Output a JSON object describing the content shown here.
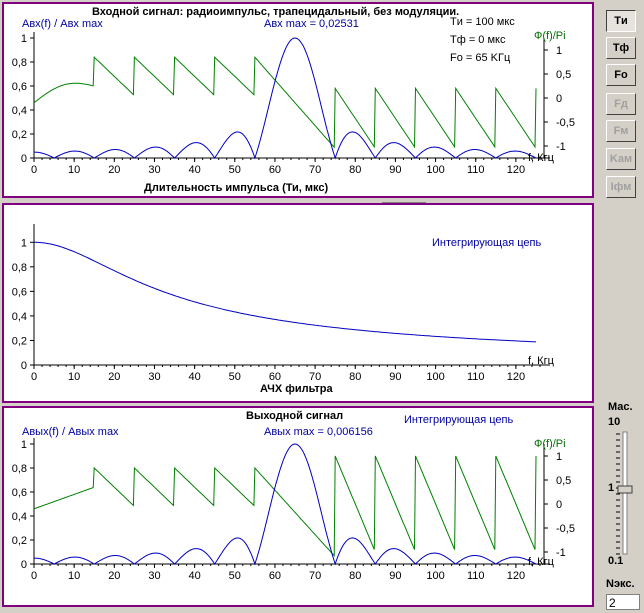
{
  "panels": {
    "input": {
      "title": "Входной сигнал: радиоимпульс, трапецидальный, без модуляции.",
      "left_label": "Aвх(f) / Aвх max",
      "max_label": "Aвх max = 0,02531",
      "right_label": "Ф(f)/Pi",
      "params": [
        "Tи = 100 мкс",
        "Tф = 0 мкс",
        "Fo = 65 KГц"
      ],
      "x_label": "f, Кгц",
      "duration_label": "Длительность импульса (Ти, мкс)",
      "duration_value": "100"
    },
    "filter": {
      "right_caption": "Интегрирующая цепь",
      "bottom_title": "АЧХ фильтра",
      "x_label": "f, Кгц"
    },
    "output": {
      "title": "Выходной сигнал",
      "left_label": "Aвых(f) / Aвых max",
      "max_label": "Aвых max = 0,006156",
      "right_caption": "Интегрирующая цепь",
      "right_label": "Ф(f)/Pi",
      "x_label": "f, Кгц"
    }
  },
  "side_buttons": [
    {
      "label": "Tи",
      "enabled": true,
      "pressed": true
    },
    {
      "label": "Tф",
      "enabled": true,
      "pressed": false
    },
    {
      "label": "Fo",
      "enabled": true,
      "pressed": false
    },
    {
      "label": "Fд",
      "enabled": false,
      "pressed": false
    },
    {
      "label": "Fм",
      "enabled": false,
      "pressed": false
    },
    {
      "label": "Kам",
      "enabled": false,
      "pressed": false
    },
    {
      "label": "Iфм",
      "enabled": false,
      "pressed": false
    }
  ],
  "scale": {
    "title": "Мас.",
    "top": "10",
    "mid": "1",
    "bottom": "0.1",
    "value": 1
  },
  "experiment": {
    "label": "Nэкс.",
    "value": "2"
  },
  "colors": {
    "amplitude": "#0000c0",
    "phase": "#008000",
    "frame": "#800080"
  },
  "chart_data": [
    {
      "type": "line",
      "title": "Входной сигнал: радиоимпульс, трапецидальный, без модуляции.",
      "xlabel": "f, Кгц",
      "ylabel": "Aвх(f) / Aвх max",
      "y2label": "Ф(f)/Pi",
      "xlim": [
        0,
        127
      ],
      "ylim": [
        0,
        1
      ],
      "y2lim": [
        -1.25,
        1.25
      ],
      "x_ticks": [
        0,
        10,
        20,
        30,
        40,
        50,
        60,
        70,
        80,
        90,
        100,
        110,
        120
      ],
      "y_ticks": [
        0,
        0.2,
        0.4,
        0.6,
        0.8,
        1
      ],
      "y2_ticks": [
        -1,
        -0.5,
        0,
        0.5,
        1
      ],
      "series": [
        {
          "name": "amplitude",
          "model": "sinc",
          "f0": 65,
          "tau_us": 100
        },
        {
          "name": "phase",
          "model": "sawtooth",
          "f0": 65,
          "period": 10,
          "pattern": "input"
        }
      ]
    },
    {
      "type": "line",
      "title": "АЧХ фильтра",
      "xlabel": "f, Кгц",
      "xlim": [
        0,
        127
      ],
      "ylim": [
        0,
        1.1
      ],
      "x_ticks": [
        0,
        10,
        20,
        30,
        40,
        50,
        60,
        70,
        80,
        90,
        100,
        110,
        120
      ],
      "y_ticks": [
        0,
        0.2,
        0.4,
        0.6,
        0.8,
        1
      ],
      "series": [
        {
          "name": "filter",
          "model": "lowpass",
          "fc": 24,
          "x": [
            0,
            10,
            20,
            30,
            40,
            50,
            60,
            70,
            80,
            90,
            100,
            110,
            125
          ],
          "y": [
            1.0,
            0.92,
            0.77,
            0.63,
            0.51,
            0.43,
            0.37,
            0.32,
            0.29,
            0.26,
            0.23,
            0.21,
            0.19
          ]
        }
      ]
    },
    {
      "type": "line",
      "title": "Выходной сигнал",
      "xlabel": "f, Кгц",
      "ylabel": "Aвых(f) / Aвых max",
      "y2label": "Ф(f)/Pi",
      "xlim": [
        0,
        127
      ],
      "ylim": [
        0,
        1
      ],
      "y2lim": [
        -1.25,
        1.25
      ],
      "x_ticks": [
        0,
        10,
        20,
        30,
        40,
        50,
        60,
        70,
        80,
        90,
        100,
        110,
        120
      ],
      "y_ticks": [
        0,
        0.2,
        0.4,
        0.6,
        0.8,
        1
      ],
      "y2_ticks": [
        -1,
        -0.5,
        0,
        0.5,
        1
      ],
      "series": [
        {
          "name": "amplitude",
          "model": "sinc",
          "f0": 65,
          "tau_us": 100
        },
        {
          "name": "phase",
          "model": "sawtooth",
          "f0": 65,
          "period": 10,
          "pattern": "output"
        }
      ]
    }
  ]
}
